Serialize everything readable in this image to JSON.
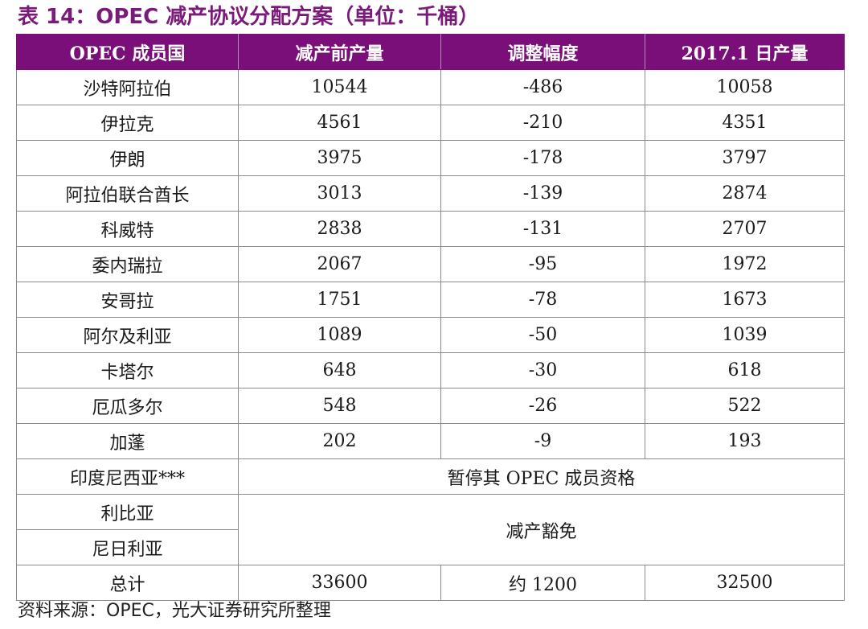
{
  "title": "表 14：OPEC 减产协议分配方案（单位：千桶）",
  "headers": [
    "OPEC 成员国",
    "减产前产量",
    "调整幅度",
    "2017.1 日产量"
  ],
  "rows": [
    [
      "沙特阿拉伯",
      "10544",
      "-486",
      "10058"
    ],
    [
      "伊拉克",
      "4561",
      "-210",
      "4351"
    ],
    [
      "伊朗",
      "3975",
      "-178",
      "3797"
    ],
    [
      "阿拉伯联合酋长",
      "3013",
      "-139",
      "2874"
    ],
    [
      "科威特",
      "2838",
      "-131",
      "2707"
    ],
    [
      "委内瑞拉",
      "2067",
      "-95",
      "1972"
    ],
    [
      "安哥拉",
      "1751",
      "-78",
      "1673"
    ],
    [
      "阿尔及利亚",
      "1089",
      "-50",
      "1039"
    ],
    [
      "卡塔尔",
      "648",
      "-30",
      "618"
    ],
    [
      "厄瓜多尔",
      "548",
      "-26",
      "522"
    ],
    [
      "加蓬",
      "202",
      "-9",
      "193"
    ]
  ],
  "indonesia": {
    "name": "印度尼西亚***",
    "note": "暂停其 OPEC 成员资格"
  },
  "exempt": {
    "names": [
      "利比亚",
      "尼日利亚"
    ],
    "note": "减产豁免"
  },
  "total": [
    "总计",
    "33600",
    "约 1200",
    "32500"
  ],
  "source": "资料来源：OPEC，光大证券研究所整理"
}
